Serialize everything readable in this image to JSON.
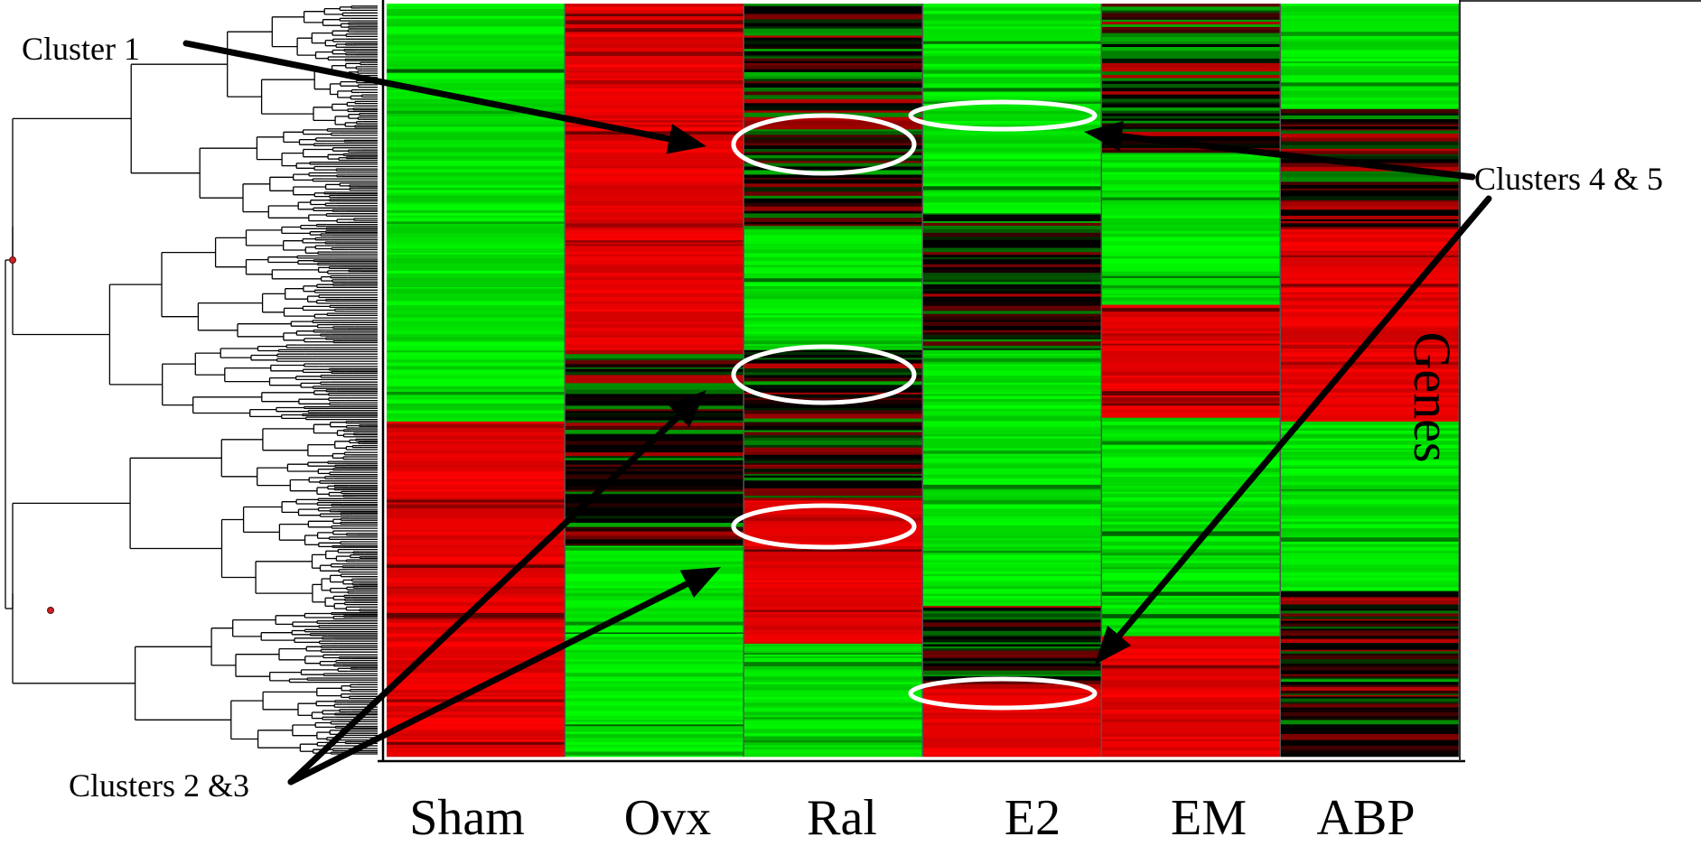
{
  "chart_data": {
    "type": "heatmap",
    "columns": [
      "Sham",
      "Ovx",
      "Ral",
      "E2",
      "EM",
      "ABP"
    ],
    "row_axis_label": "Genes",
    "colors": {
      "up": "#ff0000",
      "neutral": "#000000",
      "down": "#00ff00"
    },
    "dendrogram": "hierarchical clustering of genes (rows)",
    "annotations": [
      {
        "text": "Cluster 1",
        "points_to": "Ral",
        "ring_color": "#ffffff"
      },
      {
        "text": "Clusters 4 & 5",
        "points_to": "E2",
        "ring_color": "#ffffff"
      },
      {
        "text": "Clusters 2 &3",
        "points_to": "Ral",
        "ring_color": "#ffffff"
      }
    ],
    "column_blocks": {
      "Sham": [
        [
          0,
          0.555,
          "down"
        ],
        [
          0.555,
          0.665,
          "up"
        ],
        [
          0.665,
          1,
          "up"
        ]
      ],
      "Ovx": [
        [
          0,
          0.46,
          "up"
        ],
        [
          0.46,
          0.72,
          "neutral"
        ],
        [
          0.72,
          1,
          "down"
        ]
      ],
      "Ral": [
        [
          0,
          0.18,
          "neutral"
        ],
        [
          0.18,
          0.3,
          "neutral"
        ],
        [
          0.3,
          0.46,
          "down"
        ],
        [
          0.46,
          0.66,
          "neutral"
        ],
        [
          0.66,
          0.85,
          "up"
        ],
        [
          0.85,
          1,
          "down"
        ]
      ],
      "E2": [
        [
          0,
          0.28,
          "down"
        ],
        [
          0.28,
          0.46,
          "neutral"
        ],
        [
          0.46,
          0.8,
          "down"
        ],
        [
          0.8,
          0.91,
          "neutral"
        ],
        [
          0.91,
          1,
          "up"
        ]
      ],
      "EM": [
        [
          0,
          0.2,
          "neutral"
        ],
        [
          0.2,
          0.4,
          "down"
        ],
        [
          0.4,
          0.55,
          "up"
        ],
        [
          0.55,
          0.84,
          "down"
        ],
        [
          0.84,
          1,
          "up"
        ]
      ],
      "ABP": [
        [
          0,
          0.14,
          "down"
        ],
        [
          0.14,
          0.3,
          "neutral"
        ],
        [
          0.3,
          0.555,
          "up"
        ],
        [
          0.555,
          0.78,
          "down"
        ],
        [
          0.78,
          1,
          "neutral"
        ]
      ]
    }
  }
}
